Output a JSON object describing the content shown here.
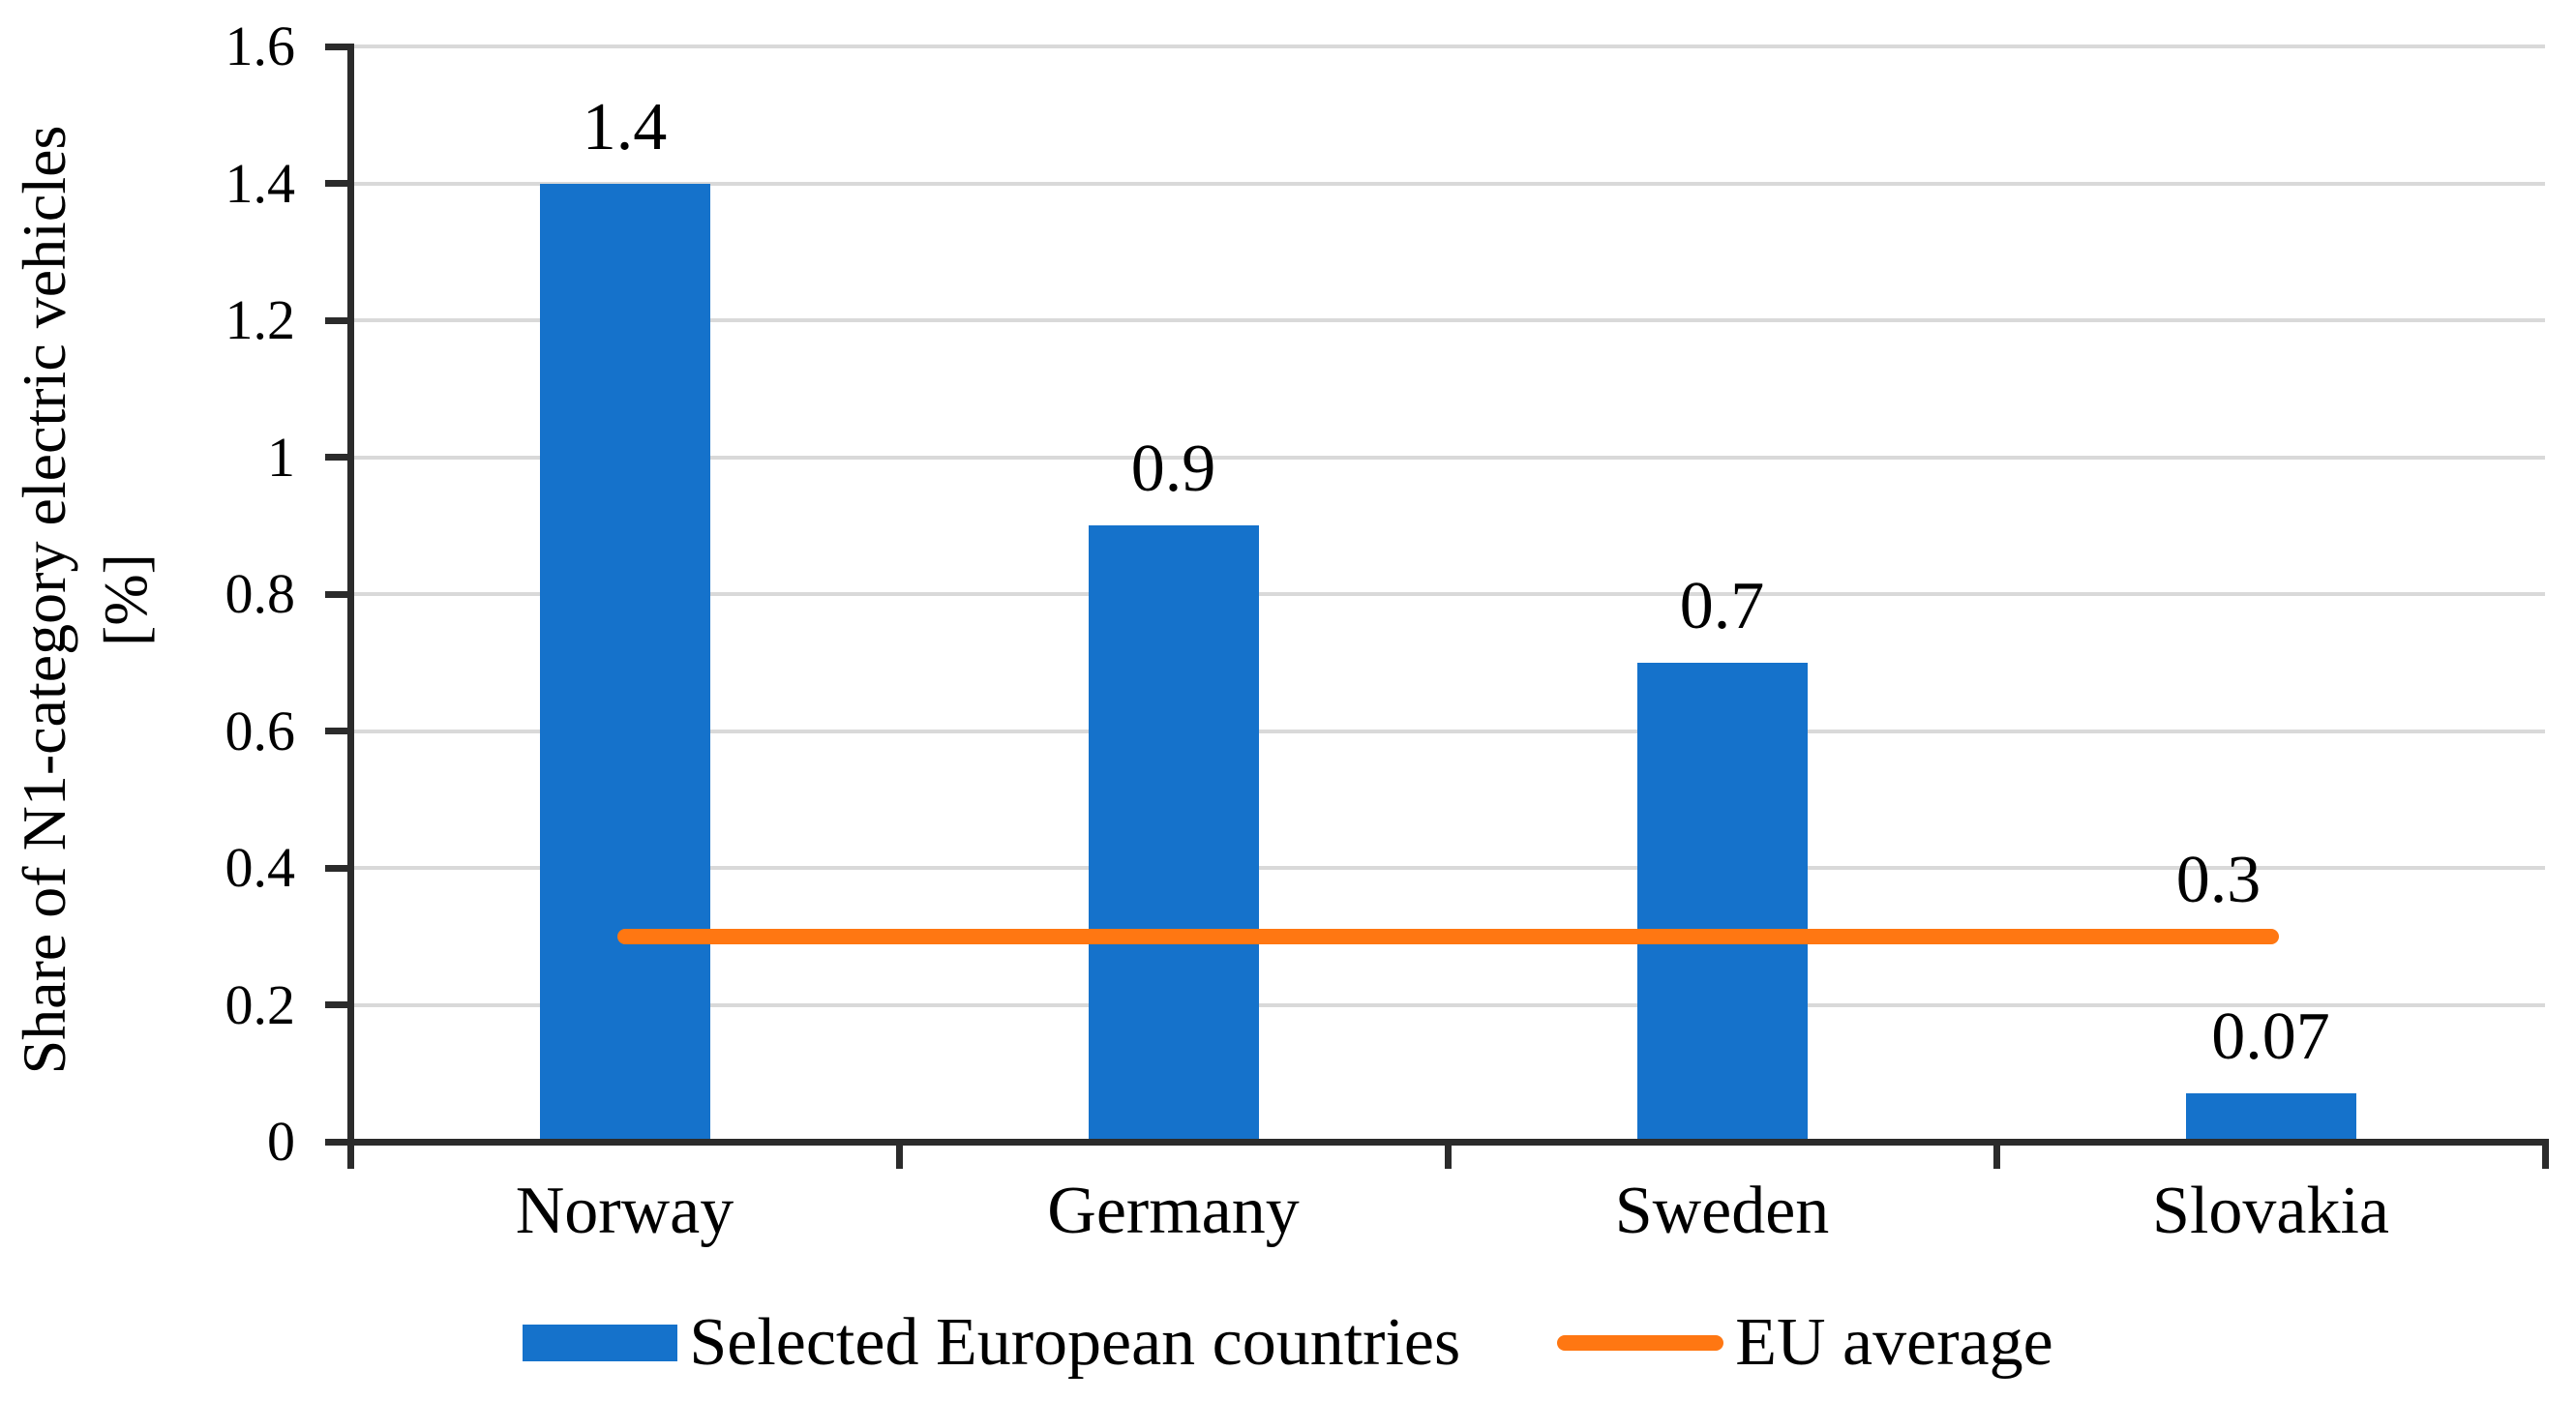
{
  "chart_data": {
    "type": "bar",
    "categories": [
      "Norway",
      "Germany",
      "Sweden",
      "Slovakia"
    ],
    "series": [
      {
        "name": "Selected European countries",
        "type": "bar",
        "color": "#1572CB",
        "values": [
          1.4,
          0.9,
          0.7,
          0.07
        ],
        "data_labels": [
          "1.4",
          "0.9",
          "0.7",
          "0.07"
        ]
      },
      {
        "name": "EU average",
        "type": "line",
        "color": "#FF7712",
        "values": [
          0.3,
          0.3,
          0.3,
          0.3
        ],
        "data_label": "0.3"
      }
    ],
    "ylabel_line1": "Share of N1-category electric vehicles",
    "ylabel_line2": "[%]",
    "ylim": [
      0,
      1.6
    ],
    "yticks": [
      "0",
      "0.2",
      "0.4",
      "0.6",
      "0.8",
      "1",
      "1.2",
      "1.4",
      "1.6"
    ],
    "grid": true,
    "legend_position": "bottom",
    "colors": {
      "gridline": "#D9D9D9",
      "axis": "#2B2B2B",
      "text": "#000000",
      "background": "#FFFFFF"
    }
  }
}
